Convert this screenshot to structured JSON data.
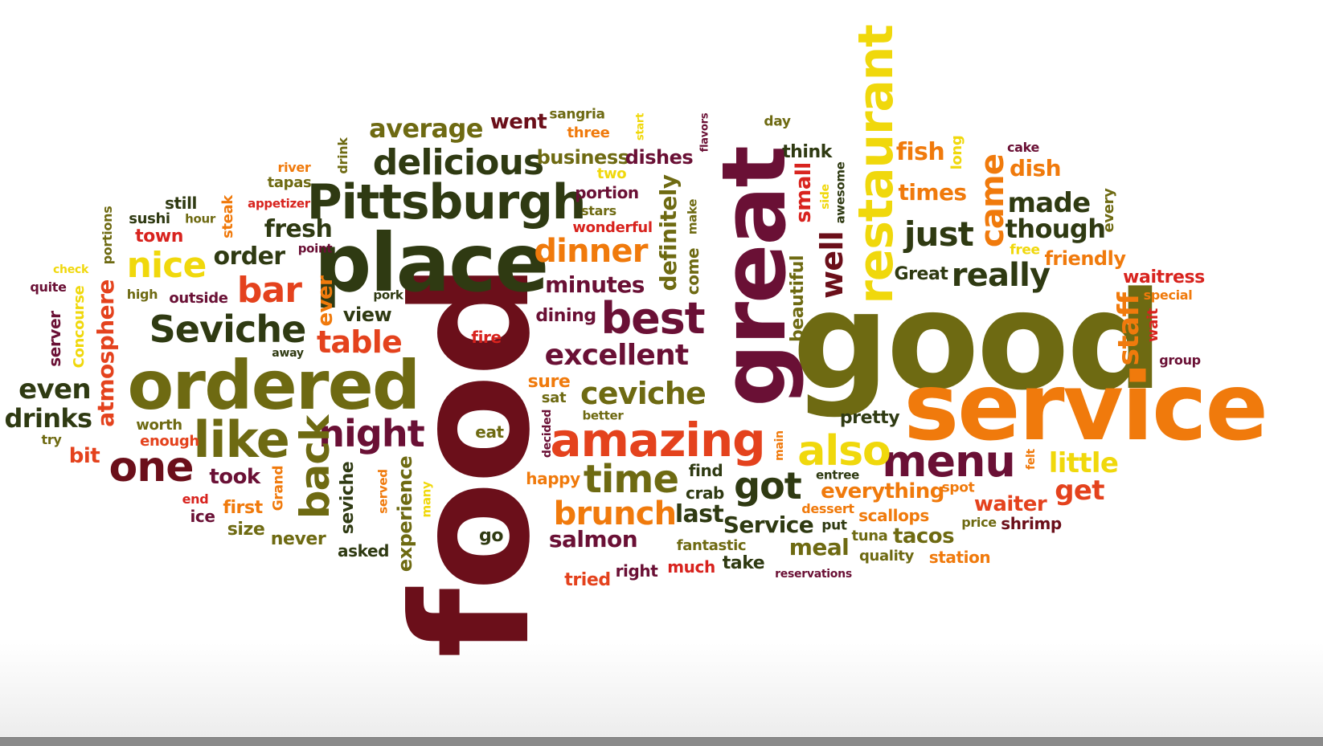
{
  "palette": {
    "dark_red": "#6b0f1a",
    "maroon": "#6a1035",
    "dark_green": "#2f3a12",
    "olive": "#6e6a12",
    "orange": "#f07a0c",
    "red_orange": "#e4421d",
    "yellow": "#f0d80c",
    "red": "#d8231e"
  },
  "words": [
    {
      "text": "food",
      "color": "#6b0f1a"
    },
    {
      "text": "good",
      "color": "#6e6a12"
    },
    {
      "text": "service",
      "color": "#f07a0c"
    },
    {
      "text": "great",
      "color": "#6a1035"
    },
    {
      "text": "place",
      "color": "#2f3a12"
    },
    {
      "text": "ordered",
      "color": "#6e6a12"
    },
    {
      "text": "restaurant",
      "color": "#f0d80c"
    },
    {
      "text": "Pittsburgh",
      "color": "#2f3a12"
    },
    {
      "text": "amazing",
      "color": "#e4421d"
    },
    {
      "text": "menu",
      "color": "#6a1035"
    },
    {
      "text": "like",
      "color": "#6e6a12"
    },
    {
      "text": "one",
      "color": "#6b0f1a"
    },
    {
      "text": "best",
      "color": "#6a1035"
    },
    {
      "text": "Seviche",
      "color": "#2f3a12"
    },
    {
      "text": "also",
      "color": "#f0d80c"
    },
    {
      "text": "time",
      "color": "#6e6a12"
    },
    {
      "text": "delicious",
      "color": "#2f3a12"
    },
    {
      "text": "night",
      "color": "#6a1035"
    },
    {
      "text": "back",
      "color": "#6e6a12"
    },
    {
      "text": "nice",
      "color": "#f0d80c"
    },
    {
      "text": "bar",
      "color": "#e4421d"
    },
    {
      "text": "brunch",
      "color": "#f07a0c"
    },
    {
      "text": "dinner",
      "color": "#f07a0c"
    },
    {
      "text": "just",
      "color": "#2f3a12"
    },
    {
      "text": "came",
      "color": "#f07a0c"
    },
    {
      "text": "really",
      "color": "#2f3a12"
    },
    {
      "text": "got",
      "color": "#2f3a12"
    },
    {
      "text": "excellent",
      "color": "#6a1035"
    },
    {
      "text": "ceviche",
      "color": "#6e6a12"
    },
    {
      "text": "table",
      "color": "#e4421d"
    },
    {
      "text": "average",
      "color": "#6e6a12"
    },
    {
      "text": "made",
      "color": "#2f3a12"
    },
    {
      "text": "though",
      "color": "#2f3a12"
    },
    {
      "text": "little",
      "color": "#f0d80c"
    },
    {
      "text": "get",
      "color": "#e4421d"
    },
    {
      "text": "staff",
      "color": "#f07a0c"
    },
    {
      "text": "well",
      "color": "#6b0f1a"
    },
    {
      "text": "even",
      "color": "#2f3a12"
    },
    {
      "text": "drinks",
      "color": "#2f3a12"
    },
    {
      "text": "atmosphere",
      "color": "#e4421d"
    },
    {
      "text": "definitely",
      "color": "#6e6a12"
    },
    {
      "text": "fresh",
      "color": "#2f3a12"
    },
    {
      "text": "order",
      "color": "#2f3a12"
    },
    {
      "text": "minutes",
      "color": "#6a1035"
    },
    {
      "text": "Service",
      "color": "#2f3a12"
    },
    {
      "text": "went",
      "color": "#6b0f1a"
    },
    {
      "text": "fish",
      "color": "#f07a0c"
    },
    {
      "text": "times",
      "color": "#f07a0c"
    },
    {
      "text": "friendly",
      "color": "#f07a0c"
    },
    {
      "text": "waitress",
      "color": "#d8231e"
    },
    {
      "text": "business",
      "color": "#6e6a12"
    },
    {
      "text": "dishes",
      "color": "#6a1035"
    },
    {
      "text": "dish",
      "color": "#f07a0c"
    },
    {
      "text": "small",
      "color": "#d8231e"
    },
    {
      "text": "beautiful",
      "color": "#6e6a12"
    },
    {
      "text": "ever",
      "color": "#f07a0c"
    },
    {
      "text": "took",
      "color": "#6a1035"
    },
    {
      "text": "salmon",
      "color": "#6a1035"
    },
    {
      "text": "last",
      "color": "#2f3a12"
    },
    {
      "text": "meal",
      "color": "#6e6a12"
    },
    {
      "text": "waiter",
      "color": "#e4421d"
    },
    {
      "text": "tacos",
      "color": "#6e6a12"
    },
    {
      "text": "everything",
      "color": "#f07a0c"
    },
    {
      "text": "experience",
      "color": "#6e6a12"
    },
    {
      "text": "seviche",
      "color": "#2f3a12"
    },
    {
      "text": "view",
      "color": "#2f3a12"
    },
    {
      "text": "dining",
      "color": "#6a1035"
    },
    {
      "text": "pretty",
      "color": "#2f3a12"
    },
    {
      "text": "Great",
      "color": "#2f3a12"
    },
    {
      "text": "think",
      "color": "#2f3a12"
    },
    {
      "text": "portion",
      "color": "#6a1035"
    },
    {
      "text": "wonderful",
      "color": "#d8231e"
    },
    {
      "text": "sangria",
      "color": "#6e6a12"
    },
    {
      "text": "three",
      "color": "#f07a0c"
    },
    {
      "text": "two",
      "color": "#f0d80c"
    },
    {
      "text": "stars",
      "color": "#6e6a12"
    },
    {
      "text": "day",
      "color": "#6e6a12"
    },
    {
      "text": "cake",
      "color": "#6a1035"
    },
    {
      "text": "long",
      "color": "#f0d80c"
    },
    {
      "text": "every",
      "color": "#6e6a12"
    },
    {
      "text": "free",
      "color": "#f0d80c"
    },
    {
      "text": "special",
      "color": "#f07a0c"
    },
    {
      "text": "wait",
      "color": "#d8231e"
    },
    {
      "text": "group",
      "color": "#6a1035"
    },
    {
      "text": "felt",
      "color": "#f07a0c"
    },
    {
      "text": "spot",
      "color": "#f07a0c"
    },
    {
      "text": "dessert",
      "color": "#f07a0c"
    },
    {
      "text": "scallops",
      "color": "#f07a0c"
    },
    {
      "text": "price",
      "color": "#6e6a12"
    },
    {
      "text": "shrimp",
      "color": "#6b0f1a"
    },
    {
      "text": "entree",
      "color": "#2f3a12"
    },
    {
      "text": "put",
      "color": "#2f3a12"
    },
    {
      "text": "tuna",
      "color": "#6e6a12"
    },
    {
      "text": "quality",
      "color": "#6e6a12"
    },
    {
      "text": "station",
      "color": "#f07a0c"
    },
    {
      "text": "reservations",
      "color": "#6a1035"
    },
    {
      "text": "fantastic",
      "color": "#6e6a12"
    },
    {
      "text": "take",
      "color": "#2f3a12"
    },
    {
      "text": "much",
      "color": "#d8231e"
    },
    {
      "text": "right",
      "color": "#6a1035"
    },
    {
      "text": "tried",
      "color": "#e4421d"
    },
    {
      "text": "crab",
      "color": "#2f3a12"
    },
    {
      "text": "find",
      "color": "#2f3a12"
    },
    {
      "text": "happy",
      "color": "#f07a0c"
    },
    {
      "text": "sat",
      "color": "#6e6a12"
    },
    {
      "text": "sure",
      "color": "#f07a0c"
    },
    {
      "text": "better",
      "color": "#6e6a12"
    },
    {
      "text": "decided",
      "color": "#6a1035"
    },
    {
      "text": "eat",
      "color": "#6e6a12"
    },
    {
      "text": "fire",
      "color": "#d8231e"
    },
    {
      "text": "go",
      "color": "#2f3a12"
    },
    {
      "text": "many",
      "color": "#f0d80c"
    },
    {
      "text": "served",
      "color": "#f07a0c"
    },
    {
      "text": "asked",
      "color": "#2f3a12"
    },
    {
      "text": "never",
      "color": "#6e6a12"
    },
    {
      "text": "size",
      "color": "#6e6a12"
    },
    {
      "text": "first",
      "color": "#f07a0c"
    },
    {
      "text": "Grand",
      "color": "#f07a0c"
    },
    {
      "text": "ice",
      "color": "#6a1035"
    },
    {
      "text": "end",
      "color": "#d8231e"
    },
    {
      "text": "bit",
      "color": "#e4421d"
    },
    {
      "text": "try",
      "color": "#6e6a12"
    },
    {
      "text": "worth",
      "color": "#6e6a12"
    },
    {
      "text": "enough",
      "color": "#e4421d"
    },
    {
      "text": "server",
      "color": "#6a1035"
    },
    {
      "text": "Concourse",
      "color": "#f0d80c"
    },
    {
      "text": "quite",
      "color": "#6a1035"
    },
    {
      "text": "check",
      "color": "#f0d80c"
    },
    {
      "text": "portions",
      "color": "#6e6a12"
    },
    {
      "text": "high",
      "color": "#6e6a12"
    },
    {
      "text": "outside",
      "color": "#6a1035"
    },
    {
      "text": "away",
      "color": "#2f3a12"
    },
    {
      "text": "town",
      "color": "#d8231e"
    },
    {
      "text": "sushi",
      "color": "#2f3a12"
    },
    {
      "text": "hour",
      "color": "#6e6a12"
    },
    {
      "text": "still",
      "color": "#2f3a12"
    },
    {
      "text": "tapas",
      "color": "#6e6a12"
    },
    {
      "text": "river",
      "color": "#f07a0c"
    },
    {
      "text": "drink",
      "color": "#6e6a12"
    },
    {
      "text": "appetizer",
      "color": "#d8231e"
    },
    {
      "text": "steak",
      "color": "#f07a0c"
    },
    {
      "text": "point",
      "color": "#6a1035"
    },
    {
      "text": "pork",
      "color": "#2f3a12"
    },
    {
      "text": "start",
      "color": "#f0d80c"
    },
    {
      "text": "flavors",
      "color": "#6a1035"
    },
    {
      "text": "make",
      "color": "#6e6a12"
    },
    {
      "text": "come",
      "color": "#6e6a12"
    },
    {
      "text": "side",
      "color": "#f0d80c"
    },
    {
      "text": "awesome",
      "color": "#2f3a12"
    },
    {
      "text": "main",
      "color": "#f07a0c"
    }
  ]
}
